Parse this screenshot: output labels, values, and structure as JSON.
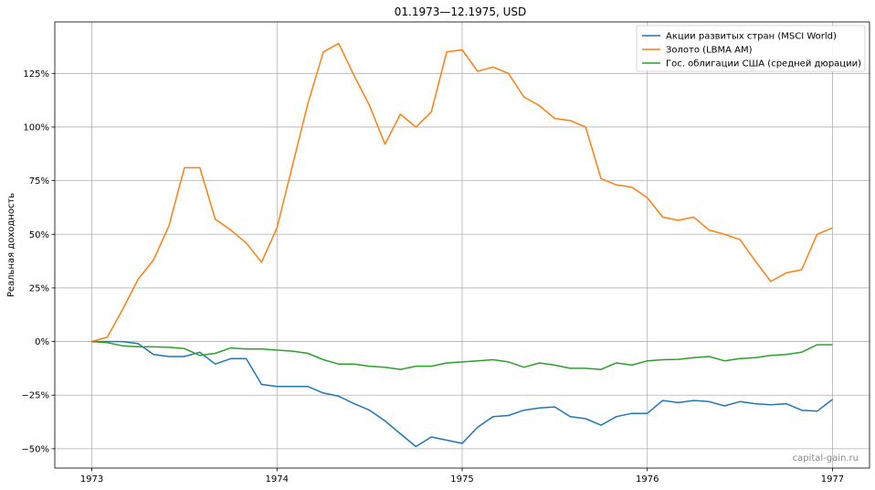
{
  "chart_data": {
    "type": "line",
    "title": "01.1973—12.1975, USD",
    "xlabel": "",
    "ylabel": "Реальная доходность",
    "xlim": [
      1972.8,
      1977.2
    ],
    "ylim": [
      -0.59,
      1.49
    ],
    "xticks": [
      1973,
      1974,
      1975,
      1976,
      1977
    ],
    "xtick_labels": [
      "1973",
      "1974",
      "1975",
      "1976",
      "1977"
    ],
    "yticks": [
      -0.5,
      -0.25,
      0,
      0.25,
      0.5,
      0.75,
      1.0,
      1.25
    ],
    "ytick_labels": [
      "−50%",
      "−25%",
      "0%",
      "25%",
      "50%",
      "75%",
      "100%",
      "125%"
    ],
    "grid": true,
    "legend_position": "top-right",
    "watermark": "capital-gain.ru",
    "x": [
      1973.0,
      1973.0833,
      1973.1667,
      1973.25,
      1973.3333,
      1973.4167,
      1973.5,
      1973.5833,
      1973.6667,
      1973.75,
      1973.8333,
      1973.9167,
      1974.0,
      1974.0833,
      1974.1667,
      1974.25,
      1974.3333,
      1974.4167,
      1974.5,
      1974.5833,
      1974.6667,
      1974.75,
      1974.8333,
      1974.9167,
      1975.0,
      1975.0833,
      1975.1667,
      1975.25,
      1975.3333,
      1975.4167,
      1975.5,
      1975.5833,
      1975.6667,
      1975.75,
      1975.8333,
      1975.9167,
      1976.0,
      1976.0833,
      1976.1667,
      1976.25,
      1976.3333,
      1976.4167,
      1976.5,
      1976.5833,
      1976.6667,
      1976.75,
      1976.8333,
      1976.9167,
      1977.0
    ],
    "series": [
      {
        "name": "Акции развитых стран (MSCI World)",
        "color": "#1f77b4",
        "values": [
          0.0,
          0.0,
          0.0,
          -0.01,
          -0.06,
          -0.07,
          -0.07,
          -0.05,
          -0.105,
          -0.08,
          -0.08,
          -0.2,
          -0.21,
          -0.21,
          -0.21,
          -0.24,
          -0.255,
          -0.29,
          -0.32,
          -0.37,
          -0.43,
          -0.49,
          -0.445,
          -0.46,
          -0.475,
          -0.4,
          -0.35,
          -0.345,
          -0.32,
          -0.31,
          -0.305,
          -0.35,
          -0.36,
          -0.39,
          -0.35,
          -0.335,
          -0.335,
          -0.275,
          -0.285,
          -0.275,
          -0.28,
          -0.3,
          -0.28,
          -0.29,
          -0.295,
          -0.29,
          -0.32,
          -0.325,
          -0.27
        ]
      },
      {
        "name": "Золото (LBMA AM)",
        "color": "#ff7f0e",
        "values": [
          0.0,
          0.02,
          0.15,
          0.29,
          0.38,
          0.54,
          0.81,
          0.81,
          0.57,
          0.52,
          0.46,
          0.37,
          0.53,
          0.82,
          1.11,
          1.35,
          1.39,
          1.24,
          1.1,
          0.92,
          1.06,
          1.0,
          1.07,
          1.35,
          1.36,
          1.26,
          1.28,
          1.25,
          1.14,
          1.1,
          1.04,
          1.03,
          1.0,
          0.76,
          0.73,
          0.72,
          0.67,
          0.58,
          0.565,
          0.58,
          0.52,
          0.5,
          0.475,
          0.375,
          0.28,
          0.32,
          0.335,
          0.5,
          0.53
        ]
      },
      {
        "name": "Гос. облигации США (средней дюрации)",
        "color": "#2ca02c",
        "values": [
          0.0,
          -0.005,
          -0.02,
          -0.025,
          -0.025,
          -0.027,
          -0.033,
          -0.065,
          -0.055,
          -0.03,
          -0.035,
          -0.035,
          -0.04,
          -0.045,
          -0.055,
          -0.085,
          -0.105,
          -0.105,
          -0.115,
          -0.12,
          -0.13,
          -0.115,
          -0.115,
          -0.1,
          -0.095,
          -0.09,
          -0.085,
          -0.095,
          -0.12,
          -0.1,
          -0.11,
          -0.125,
          -0.125,
          -0.13,
          -0.1,
          -0.11,
          -0.09,
          -0.085,
          -0.083,
          -0.075,
          -0.07,
          -0.09,
          -0.08,
          -0.075,
          -0.065,
          -0.06,
          -0.05,
          -0.015,
          -0.015
        ]
      }
    ]
  }
}
